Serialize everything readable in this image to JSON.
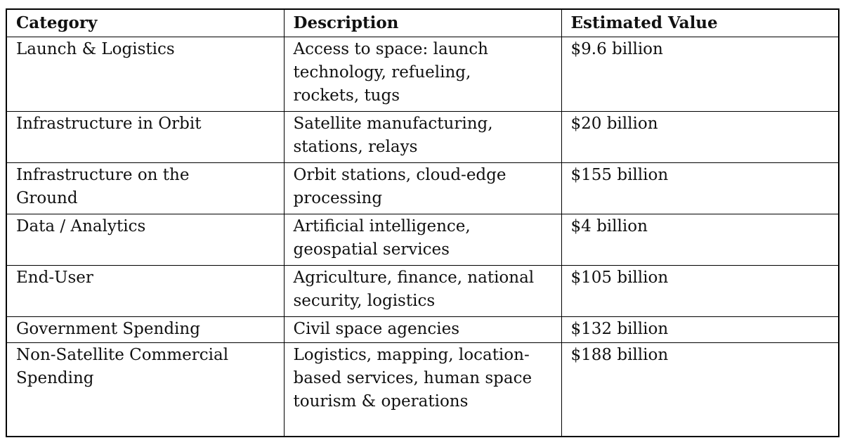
{
  "table": {
    "columns": [
      "Category",
      "Description",
      "Estimated Value"
    ],
    "rows": [
      {
        "category": "Launch & Logistics",
        "description": "Access to space: launch technology, refueling, rockets, tugs",
        "value": "$9.6 billion"
      },
      {
        "category": "Infrastructure in Orbit",
        "description": "Satellite manufacturing, stations, relays",
        "value": "$20 billion"
      },
      {
        "category": "Infrastructure on the Ground",
        "description": "Orbit stations, cloud-edge processing",
        "value": "$155 billion"
      },
      {
        "category": "Data / Analytics",
        "description": "Artificial intelligence, geospatial services",
        "value": "$4 billion"
      },
      {
        "category": "End-User",
        "description": "Agriculture, finance, national security, logistics",
        "value": "$105 billion"
      },
      {
        "category": "Government Spending",
        "description": "Civil space agencies",
        "value": "$132 billion"
      },
      {
        "category": "Non-Satellite Commercial Spending",
        "description": "Logistics, mapping, location-based services, human space tourism & operations",
        "value": "$188 billion"
      }
    ]
  }
}
